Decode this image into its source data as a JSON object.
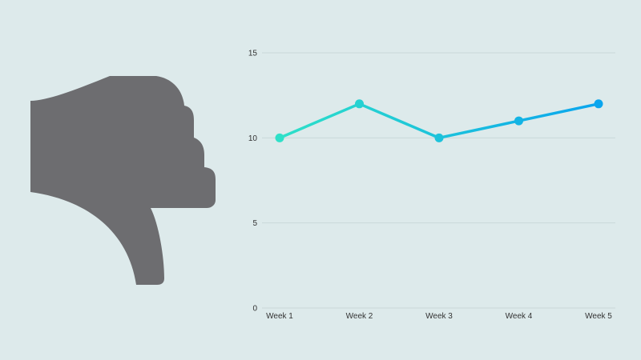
{
  "colors": {
    "background": "#ddeaeb",
    "icon": "#6d6d70",
    "line_start": "#2ee0c8",
    "line_end": "#0aa5ee",
    "grid": "#c9d8da"
  },
  "icon": "thumbs-down-icon",
  "chart_data": {
    "type": "line",
    "categories": [
      "Week 1",
      "Week 2",
      "Week 3",
      "Week 4",
      "Week 5"
    ],
    "values": [
      10,
      12,
      10,
      11,
      12
    ],
    "ylim": [
      0,
      15
    ],
    "yticks": [
      "0",
      "5",
      "10",
      "15"
    ],
    "grid": true,
    "title": "",
    "xlabel": "",
    "ylabel": ""
  }
}
